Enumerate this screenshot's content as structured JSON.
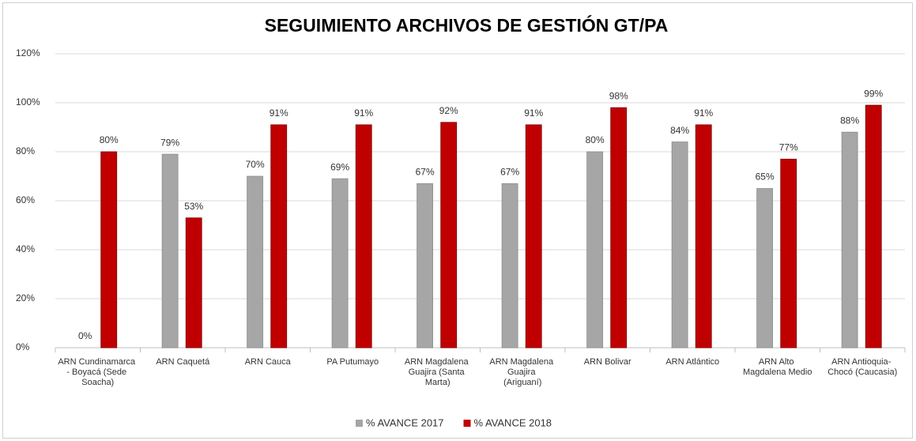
{
  "chart_data": {
    "type": "bar",
    "title": "SEGUIMIENTO ARCHIVOS DE GESTIÓN GT/PA",
    "categories": [
      "ARN Cundinamarca - Boyacá (Sede Soacha)",
      "ARN Caquetá",
      "ARN Cauca",
      "PA Putumayo",
      "ARN Magdalena Guajira (Santa Marta)",
      "ARN Magdalena Guajira (Ariguaní)",
      "ARN Bolivar",
      "ARN Atlántico",
      "ARN Alto Magdalena Medio",
      "ARN Antioquia- Chocó (Caucasia)"
    ],
    "series": [
      {
        "name": "% AVANCE 2017",
        "color": "#a6a6a6",
        "values": [
          0,
          79,
          70,
          69,
          67,
          67,
          80,
          84,
          65,
          88
        ],
        "value_labels": [
          "0%",
          "79%",
          "70%",
          "69%",
          "67%",
          "67%",
          "80%",
          "84%",
          "65%",
          "88%"
        ]
      },
      {
        "name": "% AVANCE 2018",
        "color": "#c00000",
        "values": [
          80,
          53,
          91,
          91,
          92,
          91,
          98,
          91,
          77,
          99
        ],
        "value_labels": [
          "80%",
          "53%",
          "91%",
          "91%",
          "92%",
          "91%",
          "98%",
          "91%",
          "77%",
          "99%"
        ]
      }
    ],
    "ylim": [
      0,
      120
    ],
    "yticks": [
      {
        "value": 0,
        "label": "0%"
      },
      {
        "value": 20,
        "label": "20%"
      },
      {
        "value": 40,
        "label": "40%"
      },
      {
        "value": 60,
        "label": "60%"
      },
      {
        "value": 80,
        "label": "80%"
      },
      {
        "value": 100,
        "label": "100%"
      },
      {
        "value": 120,
        "label": "120%"
      }
    ],
    "grid": true,
    "legend": "bottom"
  }
}
